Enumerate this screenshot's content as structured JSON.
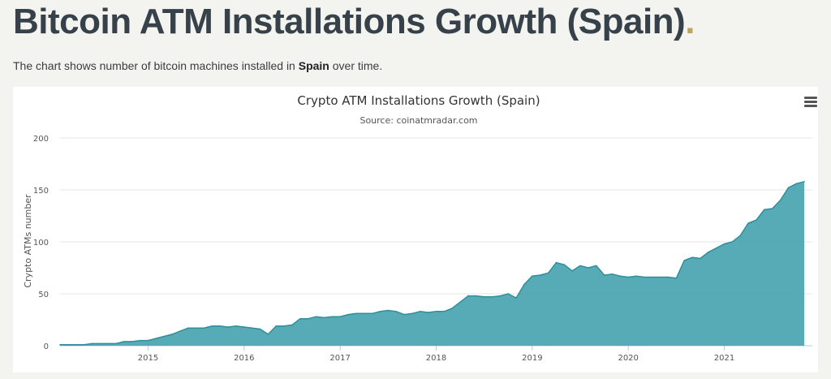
{
  "page": {
    "title": "Bitcoin ATM Installations Growth (Spain)",
    "title_dot": ".",
    "description_prefix": "The chart shows number of bitcoin machines installed in ",
    "description_bold": "Spain",
    "description_suffix": " over time.",
    "accent_color": "#bfa55a"
  },
  "menu_icon": "hamburger-menu-icon",
  "chart_data": {
    "type": "area",
    "title": "Crypto ATM Installations Growth (Spain)",
    "subtitle": "Source: coinatmradar.com",
    "ylabel": "Crypto ATMs number",
    "xlabel": "",
    "ylim": [
      0,
      200
    ],
    "yticks": [
      "0",
      "50",
      "100",
      "150",
      "200"
    ],
    "xticks": [
      "2015",
      "2016",
      "2017",
      "2018",
      "2019",
      "2020",
      "2021"
    ],
    "xlim": [
      "2014-02-01",
      "2021-12-01"
    ],
    "grid": true,
    "color": "#4ea6b2",
    "line_color": "#2f8e9b",
    "series": [
      {
        "x": [
          "2014-02",
          "2014-03",
          "2014-04",
          "2014-05",
          "2014-06",
          "2014-07",
          "2014-08",
          "2014-09",
          "2014-10",
          "2014-11",
          "2014-12",
          "2015-01",
          "2015-02",
          "2015-03",
          "2015-04",
          "2015-05",
          "2015-06",
          "2015-07",
          "2015-08",
          "2015-09",
          "2015-10",
          "2015-11",
          "2015-12",
          "2016-01",
          "2016-02",
          "2016-03",
          "2016-04",
          "2016-05",
          "2016-06",
          "2016-07",
          "2016-08",
          "2016-09",
          "2016-10",
          "2016-11",
          "2016-12",
          "2017-01",
          "2017-02",
          "2017-03",
          "2017-04",
          "2017-05",
          "2017-06",
          "2017-07",
          "2017-08",
          "2017-09",
          "2017-10",
          "2017-11",
          "2017-12",
          "2018-01",
          "2018-02",
          "2018-03",
          "2018-04",
          "2018-05",
          "2018-06",
          "2018-07",
          "2018-08",
          "2018-09",
          "2018-10",
          "2018-11",
          "2018-12",
          "2019-01",
          "2019-02",
          "2019-03",
          "2019-04",
          "2019-05",
          "2019-06",
          "2019-07",
          "2019-08",
          "2019-09",
          "2019-10",
          "2019-11",
          "2019-12",
          "2020-01",
          "2020-02",
          "2020-03",
          "2020-04",
          "2020-05",
          "2020-06",
          "2020-07",
          "2020-08",
          "2020-09",
          "2020-10",
          "2020-11",
          "2020-12",
          "2021-01",
          "2021-02",
          "2021-03",
          "2021-04",
          "2021-05",
          "2021-06",
          "2021-07",
          "2021-08",
          "2021-09",
          "2021-10",
          "2021-11"
        ],
        "values": [
          1,
          1,
          1,
          1,
          2,
          2,
          2,
          2,
          4,
          4,
          5,
          5,
          7,
          9,
          11,
          14,
          17,
          17,
          17,
          19,
          19,
          18,
          19,
          18,
          17,
          16,
          11,
          19,
          19,
          20,
          26,
          26,
          28,
          27,
          28,
          28,
          30,
          31,
          31,
          31,
          33,
          34,
          33,
          30,
          31,
          33,
          32,
          33,
          33,
          36,
          42,
          48,
          48,
          47,
          47,
          48,
          50,
          46,
          59,
          67,
          68,
          70,
          80,
          78,
          72,
          77,
          75,
          77,
          68,
          69,
          67,
          66,
          67,
          66,
          66,
          66,
          66,
          65,
          82,
          85,
          84,
          90,
          94,
          98,
          100,
          106,
          118,
          121,
          131,
          132,
          140,
          152,
          156,
          158
        ]
      }
    ]
  }
}
